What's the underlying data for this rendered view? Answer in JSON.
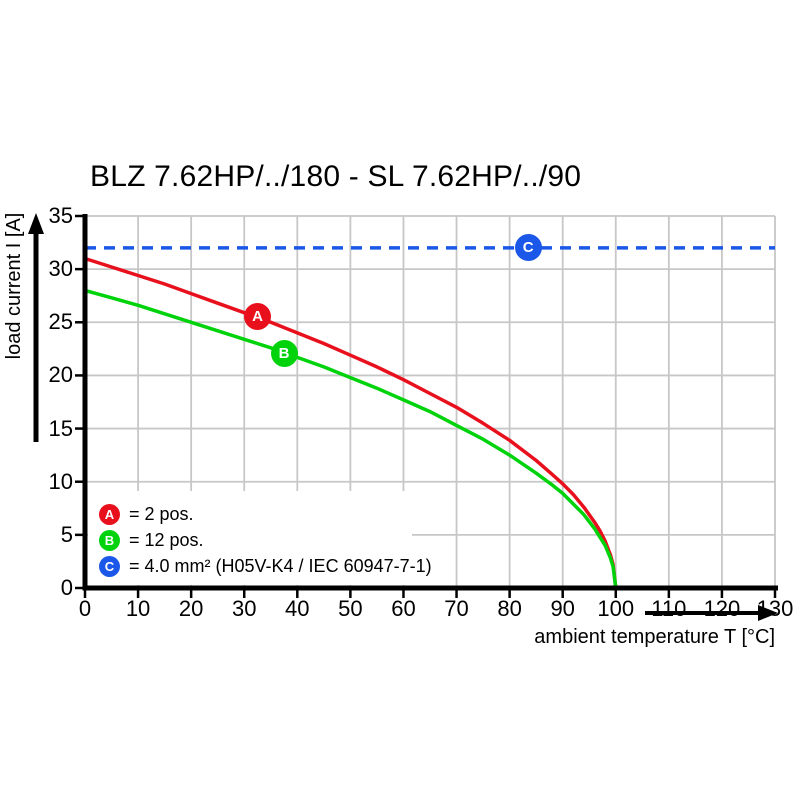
{
  "chart_data": {
    "type": "line",
    "title": "BLZ 7.62HP/../180 - SL 7.62HP/../90",
    "xlabel": "ambient temperature T [°C]",
    "ylabel": "load current I [A]",
    "xlim": [
      0,
      130
    ],
    "ylim": [
      0,
      35
    ],
    "x_ticks": [
      0,
      10,
      20,
      30,
      40,
      50,
      60,
      70,
      80,
      90,
      100,
      110,
      120,
      130
    ],
    "y_ticks": [
      0,
      5,
      10,
      15,
      20,
      25,
      30,
      35
    ],
    "grid": true,
    "legend_position": "inside-bottom-left",
    "grid_color": "#c7c7c7",
    "axis_color": "#000000",
    "series": [
      {
        "name": "A",
        "legend_label": "= 2 pos.",
        "color": "#e8101c",
        "style": "solid",
        "points": [
          [
            0,
            31
          ],
          [
            5,
            30.2
          ],
          [
            10,
            29.4
          ],
          [
            15,
            28.6
          ],
          [
            20,
            27.7
          ],
          [
            25,
            26.8
          ],
          [
            30,
            25.9
          ],
          [
            35,
            25
          ],
          [
            40,
            24
          ],
          [
            45,
            23
          ],
          [
            50,
            21.9
          ],
          [
            55,
            20.8
          ],
          [
            60,
            19.6
          ],
          [
            65,
            18.3
          ],
          [
            70,
            17
          ],
          [
            75,
            15.5
          ],
          [
            80,
            13.9
          ],
          [
            85,
            12
          ],
          [
            88,
            10.7
          ],
          [
            90,
            9.8
          ],
          [
            92,
            8.8
          ],
          [
            94,
            7.6
          ],
          [
            96,
            6.2
          ],
          [
            97,
            5.4
          ],
          [
            98,
            4.4
          ],
          [
            99,
            3.1
          ],
          [
            99.5,
            2.2
          ],
          [
            100,
            0
          ]
        ]
      },
      {
        "name": "B",
        "legend_label": "= 12 pos.",
        "color": "#00d30c",
        "style": "solid",
        "points": [
          [
            0,
            28
          ],
          [
            5,
            27.3
          ],
          [
            10,
            26.6
          ],
          [
            15,
            25.8
          ],
          [
            20,
            25
          ],
          [
            25,
            24.2
          ],
          [
            30,
            23.4
          ],
          [
            35,
            22.6
          ],
          [
            40,
            21.7
          ],
          [
            45,
            20.8
          ],
          [
            50,
            19.8
          ],
          [
            55,
            18.8
          ],
          [
            60,
            17.7
          ],
          [
            65,
            16.6
          ],
          [
            70,
            15.3
          ],
          [
            75,
            14
          ],
          [
            80,
            12.5
          ],
          [
            85,
            10.8
          ],
          [
            88,
            9.7
          ],
          [
            90,
            8.9
          ],
          [
            92,
            7.9
          ],
          [
            94,
            6.9
          ],
          [
            96,
            5.6
          ],
          [
            97,
            4.8
          ],
          [
            98,
            4
          ],
          [
            99,
            2.8
          ],
          [
            99.5,
            2
          ],
          [
            100,
            0
          ]
        ]
      },
      {
        "name": "C",
        "legend_label": "= 4.0 mm² (H05V-K4 / IEC 60947-7-1)",
        "color": "#1b57e8",
        "style": "dashed",
        "points": [
          [
            0,
            32
          ],
          [
            130,
            32
          ]
        ]
      }
    ],
    "markers": [
      {
        "letter": "A",
        "x": 32.5,
        "y": 25.5,
        "color": "#e8101c"
      },
      {
        "letter": "B",
        "x": 37.5,
        "y": 22.1,
        "color": "#00d30c"
      },
      {
        "letter": "C",
        "x": 83.5,
        "y": 32,
        "color": "#1b57e8"
      }
    ]
  }
}
